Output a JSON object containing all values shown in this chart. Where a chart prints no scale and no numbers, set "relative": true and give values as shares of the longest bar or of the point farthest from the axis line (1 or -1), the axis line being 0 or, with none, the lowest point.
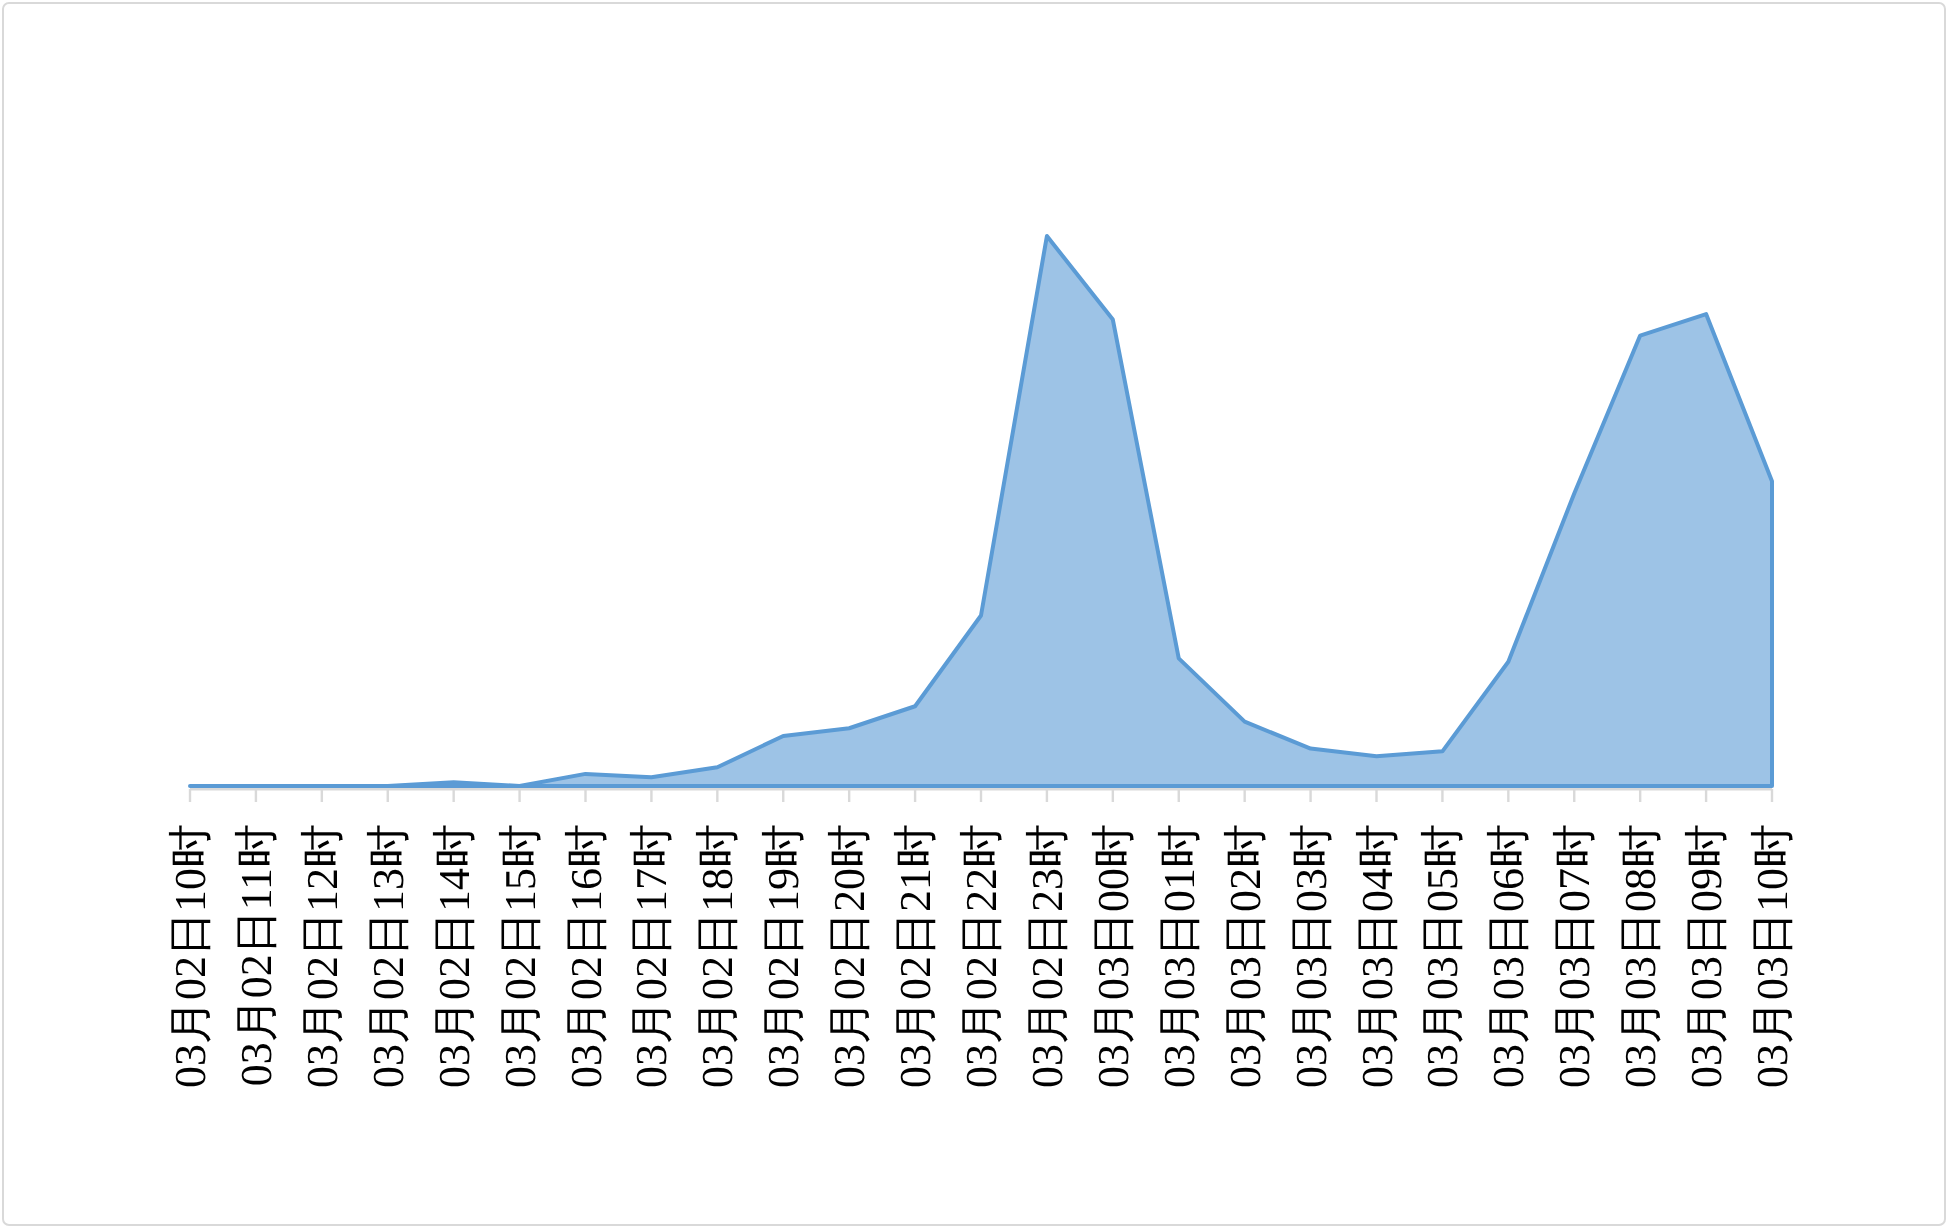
{
  "chart_data": {
    "type": "area",
    "relative": true,
    "categories": [
      "03月02日10时",
      "03月02日11时",
      "03月02日12时",
      "03月02日13时",
      "03月02日14时",
      "03月02日15时",
      "03月02日16时",
      "03月02日17时",
      "03月02日18时",
      "03月02日19时",
      "03月02日20时",
      "03月02日21时",
      "03月02日22时",
      "03月02日23时",
      "03月03日00时",
      "03月03日01时",
      "03月03日02时",
      "03月03日03时",
      "03月03日04时",
      "03月03日05时",
      "03月03日06时",
      "03月03日07时",
      "03月03日08时",
      "03月03日09时",
      "03月03日10时"
    ],
    "color": "#5b9bd5",
    "values": [
      0,
      0,
      0,
      0,
      0.007,
      0,
      0.022,
      0.016,
      0.034,
      0.091,
      0.105,
      0.145,
      0.31,
      1,
      0.848,
      0.232,
      0.117,
      0.068,
      0.054,
      0.063,
      0.226,
      0.532,
      0.819,
      0.858,
      0.554
    ]
  }
}
